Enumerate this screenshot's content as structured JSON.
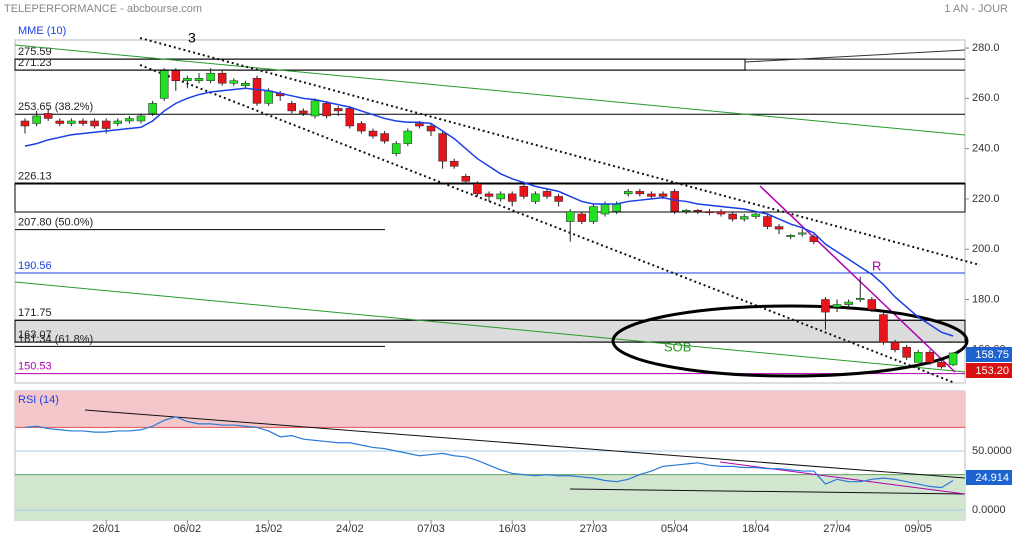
{
  "chart_data": [
    {
      "type": "candlestick",
      "title": "TELEPERFORMANCE - abcbourse.com",
      "subtitle": "1 AN - JOUR",
      "xlim": [
        -0.86,
        81.03
      ],
      "xticks": [
        {
          "value": 7,
          "label": "26/01"
        },
        {
          "value": 14,
          "label": "06/02"
        },
        {
          "value": 21,
          "label": "15/02"
        },
        {
          "value": 28,
          "label": "24/02"
        },
        {
          "value": 35,
          "label": "07/03"
        },
        {
          "value": 42,
          "label": "16/03"
        },
        {
          "value": 49,
          "label": "27/03"
        },
        {
          "value": 56,
          "label": "05/04"
        },
        {
          "value": 63,
          "label": "18/04"
        },
        {
          "value": 70,
          "label": "27/04"
        },
        {
          "value": 77,
          "label": "09/05"
        }
      ],
      "ylim": [
        146.8,
        283.2
      ],
      "yticks": [
        {
          "value": 280,
          "label": "280.0"
        },
        {
          "value": 260,
          "label": "260.0"
        },
        {
          "value": 240,
          "label": "240.0"
        },
        {
          "value": 220,
          "label": "220.0"
        },
        {
          "value": 200,
          "label": "200.0"
        },
        {
          "value": 180,
          "label": "180.0"
        },
        {
          "value": 160,
          "label": "160.00"
        }
      ],
      "up_color": "#22e022",
      "down_color": "#e8141c",
      "open": [
        251,
        250,
        254,
        251,
        250,
        251,
        251,
        251,
        250,
        251,
        251,
        254,
        260,
        271,
        267,
        267,
        267,
        270,
        266,
        265,
        268,
        258,
        262,
        258,
        255,
        253,
        258,
        256,
        256,
        250,
        247,
        246,
        238,
        242,
        250,
        249,
        246,
        235,
        229,
        226,
        222,
        220,
        222,
        225,
        219,
        223,
        221,
        211,
        214,
        211,
        214,
        215,
        222,
        223,
        222,
        222,
        223,
        215,
        215.5,
        215,
        215,
        214,
        212,
        213,
        213,
        209,
        205,
        206,
        205,
        180,
        177,
        178,
        180,
        180,
        174,
        163,
        161,
        155,
        159,
        155,
        154
      ],
      "high": [
        252,
        255,
        256,
        252,
        252,
        252,
        252,
        252,
        252,
        253,
        254,
        259,
        272,
        272,
        269,
        270,
        272,
        271,
        268,
        267,
        269,
        264,
        263,
        259,
        256,
        260,
        259,
        257,
        257,
        251,
        248,
        247,
        243,
        248,
        251,
        250,
        247,
        236,
        230,
        227,
        223,
        223,
        223,
        227,
        223,
        224,
        222,
        216,
        215,
        218,
        219,
        219,
        224,
        224,
        223,
        223,
        224,
        216,
        216,
        216,
        216,
        215,
        214,
        215,
        214,
        210,
        206,
        208,
        206,
        181,
        180,
        180,
        189,
        181,
        175,
        164,
        162,
        160,
        160,
        156,
        159
      ],
      "low": [
        246,
        249,
        251,
        249,
        249,
        249,
        248,
        246,
        249,
        250,
        250,
        253,
        259,
        263,
        264,
        266,
        266,
        265,
        265,
        264,
        257,
        257,
        259,
        254,
        253,
        252,
        252,
        253,
        248,
        246,
        244,
        242,
        237,
        241,
        248,
        245,
        232,
        232,
        226,
        221,
        219,
        219,
        217,
        220,
        218,
        220,
        217,
        203,
        210,
        210,
        213,
        214,
        221,
        221,
        220,
        220,
        214,
        214,
        214,
        213.5,
        213,
        211,
        211,
        212,
        208,
        206,
        204,
        205,
        202,
        168,
        175,
        176,
        179,
        175,
        162,
        159,
        156,
        155,
        154,
        152.5,
        153.5
      ],
      "close": [
        249,
        253,
        252,
        250,
        251,
        250,
        249,
        248,
        251,
        252,
        253,
        258,
        271,
        267,
        268,
        268,
        270,
        266,
        267,
        266,
        258,
        263,
        261,
        255,
        254,
        259,
        253,
        255,
        249,
        247,
        245,
        243,
        242,
        247,
        249,
        247,
        235,
        233,
        227,
        222,
        221,
        222,
        219,
        221,
        222,
        221,
        219,
        215,
        211,
        217,
        218,
        218,
        223,
        222,
        221,
        221,
        215,
        215.5,
        215,
        214.5,
        214,
        212,
        213,
        214,
        209,
        208,
        205.5,
        206.5,
        203,
        175,
        178,
        179,
        180.5,
        176,
        163,
        160,
        157,
        159,
        155,
        153.2,
        158.75
      ],
      "series": [
        {
          "name": "MME (10)",
          "color": "#1a3ee8",
          "values": [
            241,
            242,
            243.5,
            244.5,
            245.5,
            246,
            246.5,
            247,
            247.5,
            248,
            248.5,
            251,
            255,
            258,
            260,
            261.5,
            262.5,
            263,
            263.5,
            264,
            263.5,
            263,
            262,
            261,
            260,
            259.5,
            258.5,
            257.5,
            256.5,
            255,
            253.5,
            252,
            251,
            250.5,
            250.5,
            250,
            247,
            244,
            240,
            236,
            233,
            230,
            228,
            226.5,
            225,
            224,
            223,
            221,
            219,
            218,
            218,
            218,
            219,
            219.5,
            220,
            220.5,
            219.5,
            219,
            218,
            217.5,
            217,
            216.5,
            216,
            215,
            214,
            212,
            210,
            208.5,
            206.5,
            202,
            199,
            196,
            193,
            190,
            186,
            181,
            177,
            173,
            170,
            167,
            165.5
          ]
        }
      ],
      "levels": [
        {
          "value": 275.59,
          "label": "275.59",
          "color": "#000"
        },
        {
          "value": 271.23,
          "label": "271.23",
          "color": "#000"
        },
        {
          "value": 253.65,
          "label": "253.65  (38.2%)",
          "color": "#000"
        },
        {
          "value": 226.13,
          "label": "226.13",
          "color": "#000"
        },
        {
          "value": 207.8,
          "label": "207.80  (50.0%)",
          "color": "#000"
        },
        {
          "value": 190.56,
          "label": "190.56",
          "color": "#1a3ee8"
        },
        {
          "value": 171.75,
          "label": "171.75",
          "color": "#000"
        },
        {
          "value": 163.07,
          "label": "163.07",
          "color": "#000"
        },
        {
          "value": 161.34,
          "label": "161.34  (61.8%)",
          "color": "#000"
        },
        {
          "value": 150.53,
          "label": "150.53",
          "color": "#b000b0"
        }
      ],
      "annotations": [
        "3",
        "R",
        "SOB"
      ],
      "marker_label": {
        "value": 153.2,
        "label": "153.20"
      }
    },
    {
      "type": "line",
      "xlim": [
        -0.86,
        81.03
      ],
      "ylim": [
        -8.47,
        100.85
      ],
      "yticks": [
        {
          "value": 50,
          "label": "50.0000"
        },
        {
          "value": 0,
          "label": "0.0000"
        }
      ],
      "overbought": 70,
      "oversold": 30,
      "series": [
        {
          "name": "RSI (14)",
          "color": "#2a7ad8",
          "values": [
            70,
            71,
            69,
            68,
            67,
            67,
            66,
            66,
            67,
            67,
            68,
            71,
            76,
            79,
            75,
            73,
            73,
            72,
            72,
            71,
            70,
            67,
            62,
            63,
            60,
            59,
            58,
            57,
            57,
            55,
            53,
            52,
            50,
            48,
            46,
            47,
            48,
            46,
            45,
            42,
            38,
            34,
            31,
            30,
            29,
            30,
            29,
            29,
            28,
            27,
            25,
            24,
            26,
            30,
            33,
            37,
            38,
            39,
            40,
            38,
            37,
            37,
            36,
            36,
            35,
            35,
            34,
            33,
            33,
            22,
            26,
            24,
            24,
            26,
            27,
            26,
            24,
            22,
            20,
            19,
            24.914
          ]
        }
      ]
    }
  ]
}
